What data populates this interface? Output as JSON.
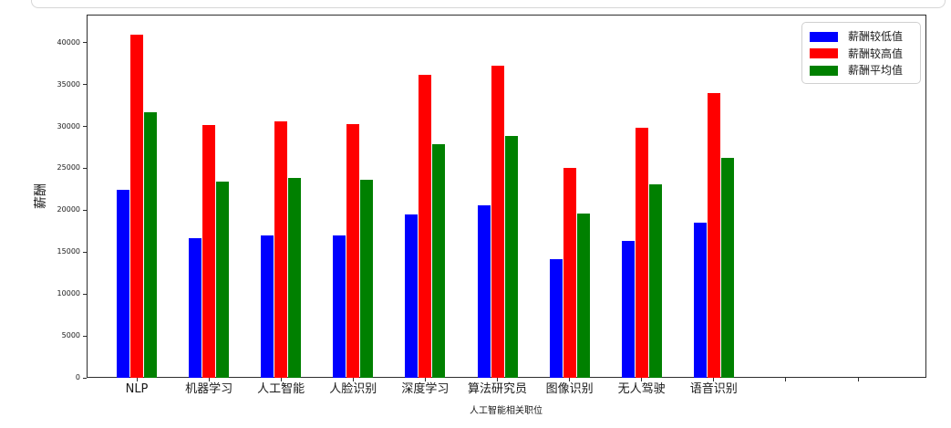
{
  "chart_data": {
    "type": "bar",
    "title": "",
    "xlabel": "人工智能相关职位",
    "ylabel": "薪酬",
    "categories": [
      "NLP",
      "机器学习",
      "人工智能",
      "人脸识别",
      "深度学习",
      "算法研究员",
      "图像识别",
      "无人驾驶",
      "语音识别"
    ],
    "series": [
      {
        "name": "薪酬较低值",
        "color": "#0000ff",
        "values": [
          22450,
          16700,
          17000,
          17000,
          19500,
          20550,
          14150,
          16300,
          18550
        ]
      },
      {
        "name": "薪酬较高值",
        "color": "#ff0000",
        "values": [
          40950,
          30200,
          30650,
          30300,
          36150,
          37250,
          25050,
          29800,
          33950
        ]
      },
      {
        "name": "薪酬平均值",
        "color": "#008000",
        "values": [
          31700,
          23450,
          23825,
          23650,
          27825,
          28900,
          19600,
          23050,
          26250
        ]
      }
    ],
    "yticks": [
      0,
      5000,
      10000,
      15000,
      20000,
      25000,
      30000,
      35000,
      40000
    ],
    "ylim": [
      0,
      43340
    ],
    "unlabeled_extra_xticks": 2,
    "legend_position": "upper right",
    "grid": false
  }
}
